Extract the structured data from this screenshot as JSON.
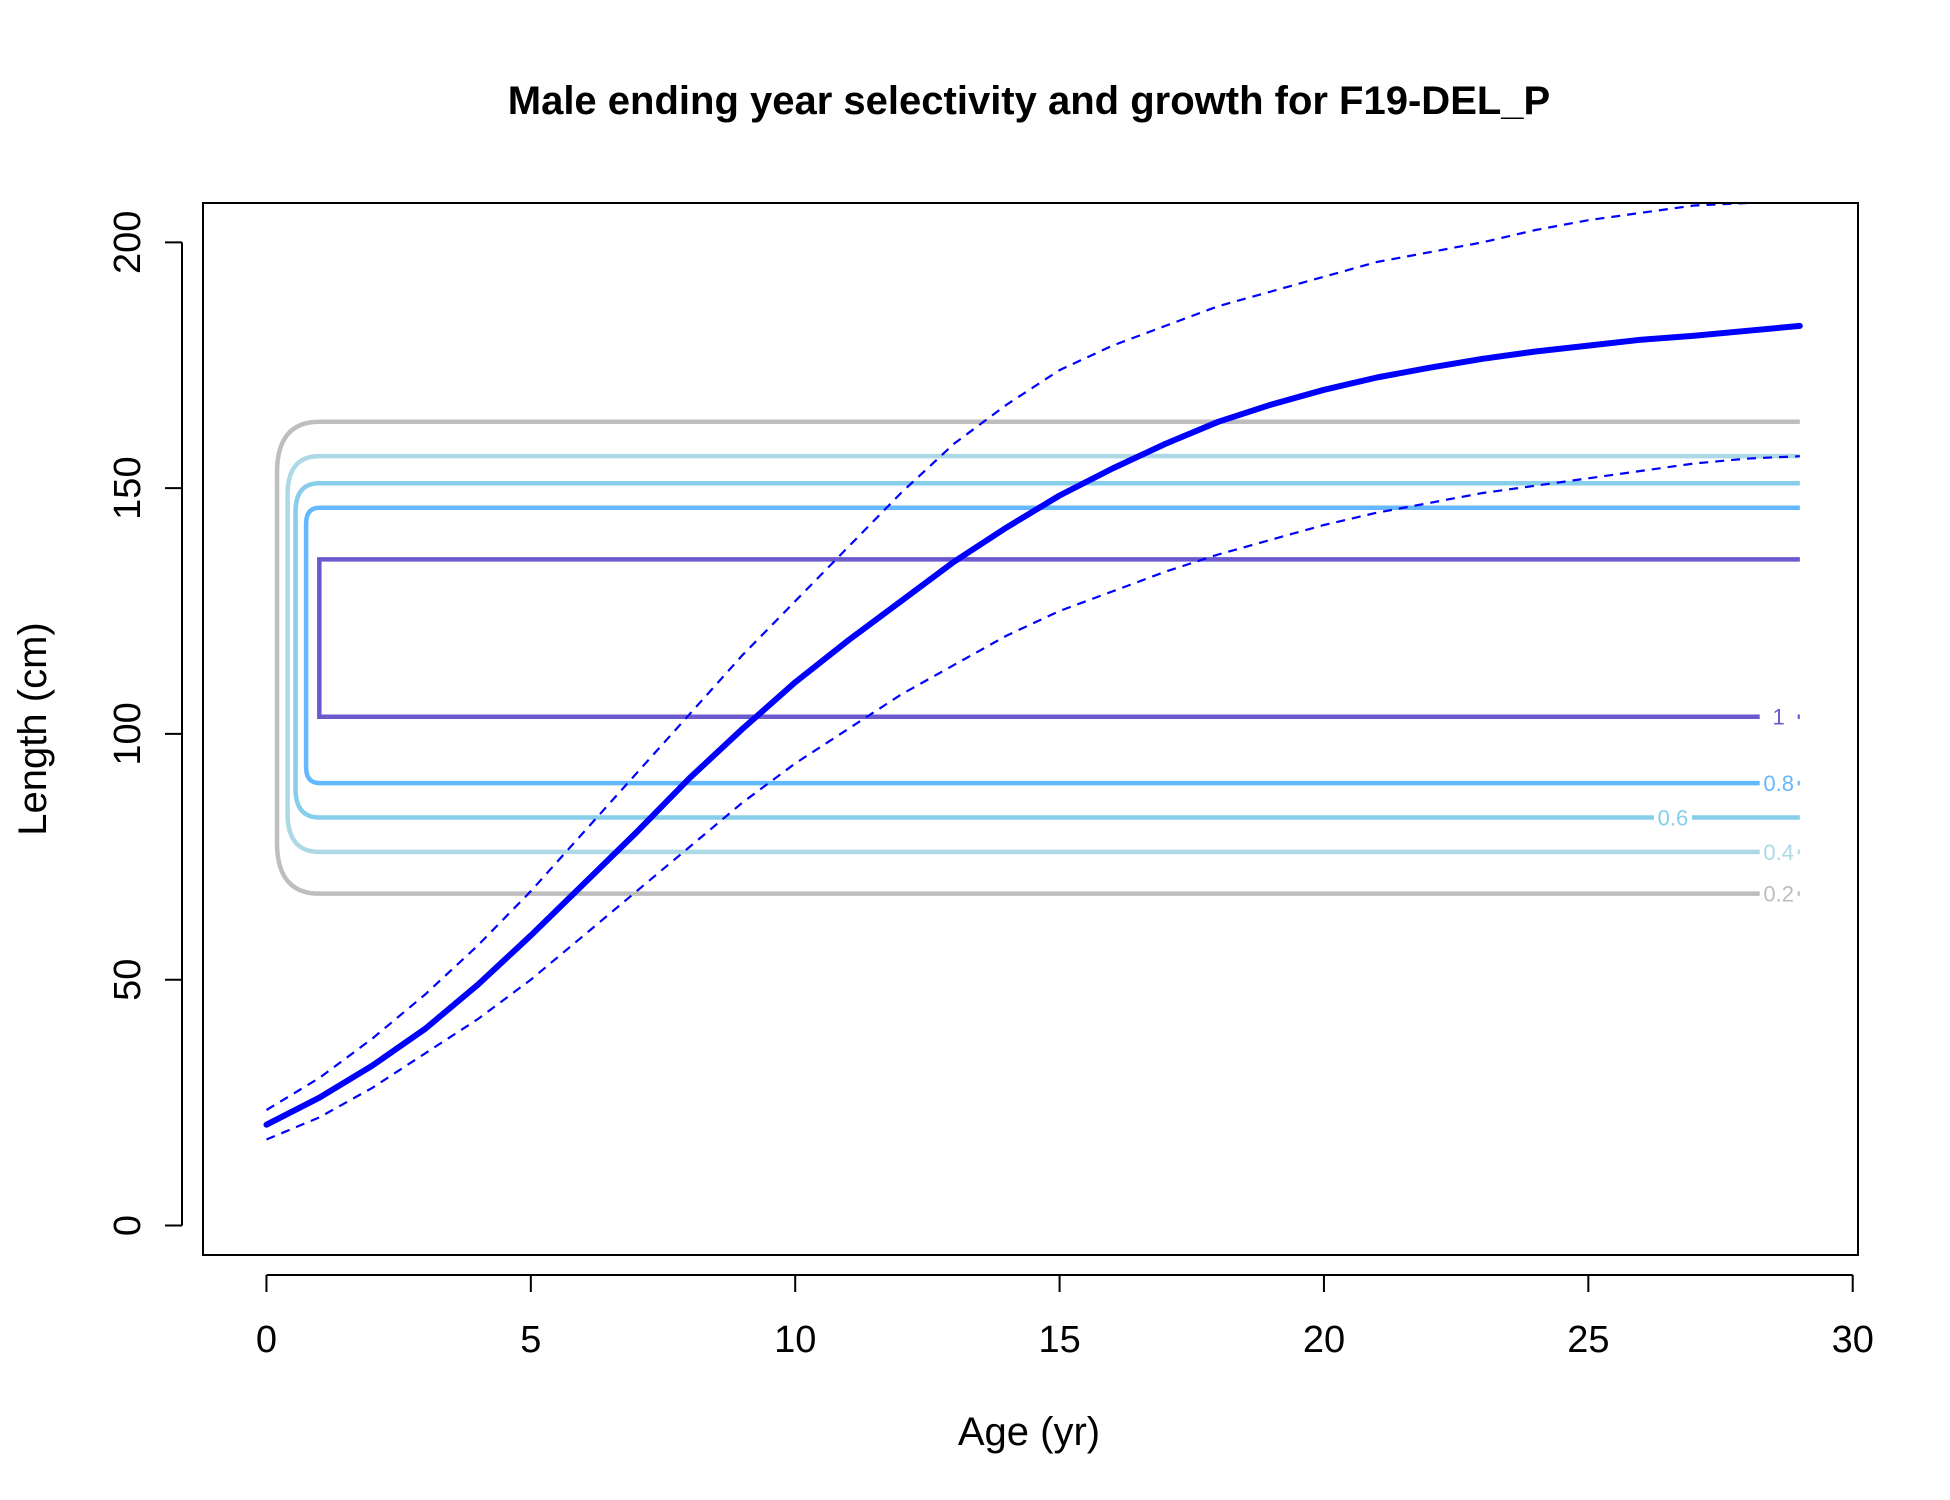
{
  "chart_data": {
    "type": "line",
    "title": "Male ending year selectivity and growth for F19-DEL_P",
    "xlabel": "Age (yr)",
    "ylabel": "Length (cm)",
    "xlim": [
      -1.2,
      30.1
    ],
    "ylim": [
      -6,
      208
    ],
    "xticks": [
      0,
      5,
      10,
      15,
      20,
      25,
      30
    ],
    "yticks": [
      0,
      50,
      100,
      150,
      200
    ],
    "grid": false,
    "growth": {
      "color": "#0000ff",
      "mean": [
        [
          0,
          20.5
        ],
        [
          1,
          26
        ],
        [
          2,
          32.5
        ],
        [
          3,
          40
        ],
        [
          4,
          49
        ],
        [
          5,
          59
        ],
        [
          6,
          69.5
        ],
        [
          7,
          80
        ],
        [
          8,
          91
        ],
        [
          9,
          101
        ],
        [
          10,
          110.5
        ],
        [
          11,
          119
        ],
        [
          12,
          127
        ],
        [
          13,
          135
        ],
        [
          14,
          142
        ],
        [
          15,
          148.5
        ],
        [
          16,
          154
        ],
        [
          17,
          159
        ],
        [
          18,
          163.5
        ],
        [
          19,
          167
        ],
        [
          20,
          170
        ],
        [
          21,
          172.5
        ],
        [
          22,
          174.5
        ],
        [
          23,
          176.3
        ],
        [
          24,
          177.8
        ],
        [
          25,
          179
        ],
        [
          26,
          180.2
        ],
        [
          27,
          181
        ],
        [
          28,
          182
        ],
        [
          29,
          183
        ]
      ],
      "upper": [
        [
          0,
          23.5
        ],
        [
          1,
          30
        ],
        [
          2,
          38
        ],
        [
          3,
          47
        ],
        [
          4,
          57
        ],
        [
          5,
          68
        ],
        [
          6,
          80
        ],
        [
          7,
          92
        ],
        [
          8,
          104
        ],
        [
          9,
          116
        ],
        [
          10,
          127
        ],
        [
          11,
          138
        ],
        [
          12,
          149
        ],
        [
          13,
          159
        ],
        [
          14,
          167
        ],
        [
          15,
          174
        ],
        [
          16,
          179
        ],
        [
          17,
          183
        ],
        [
          18,
          187
        ],
        [
          19,
          190
        ],
        [
          20,
          193
        ],
        [
          21,
          196
        ],
        [
          22,
          198
        ],
        [
          23,
          200
        ],
        [
          24,
          202.5
        ],
        [
          25,
          204.5
        ],
        [
          26,
          206
        ],
        [
          27,
          207.5
        ],
        [
          28,
          208
        ]
      ],
      "lower": [
        [
          0,
          17.5
        ],
        [
          1,
          22
        ],
        [
          2,
          28
        ],
        [
          3,
          35
        ],
        [
          4,
          42
        ],
        [
          5,
          50
        ],
        [
          6,
          59
        ],
        [
          7,
          68
        ],
        [
          8,
          77
        ],
        [
          9,
          86
        ],
        [
          10,
          94
        ],
        [
          11,
          101
        ],
        [
          12,
          108
        ],
        [
          13,
          114
        ],
        [
          14,
          120
        ],
        [
          15,
          125
        ],
        [
          16,
          129
        ],
        [
          17,
          133
        ],
        [
          18,
          136.5
        ],
        [
          19,
          139.5
        ],
        [
          20,
          142.5
        ],
        [
          21,
          145
        ],
        [
          22,
          147
        ],
        [
          23,
          149
        ],
        [
          24,
          150.5
        ],
        [
          25,
          152
        ],
        [
          26,
          153.5
        ],
        [
          27,
          155
        ],
        [
          28,
          156
        ],
        [
          29,
          156.5
        ]
      ]
    },
    "selectivity_contours": [
      {
        "level": "0.2",
        "color": "#bebebe",
        "low": 67.5,
        "high": 163.5,
        "age_left": 0.2,
        "label_age": 28.6
      },
      {
        "level": "0.4",
        "color": "#add8e6",
        "low": 76,
        "high": 156.5,
        "age_left": 0.4,
        "label_age": 28.6
      },
      {
        "level": "0.6",
        "color": "#87ceeb",
        "low": 83,
        "high": 151,
        "age_left": 0.55,
        "label_age": 26.6
      },
      {
        "level": "0.8",
        "color": "#63b8ff",
        "low": 90,
        "high": 146,
        "age_left": 0.75,
        "label_age": 28.6
      },
      {
        "level": "1",
        "color": "#6a5acd",
        "low": 103.5,
        "high": 135.5,
        "age_left": 1.0,
        "label_age": 28.6
      }
    ]
  }
}
